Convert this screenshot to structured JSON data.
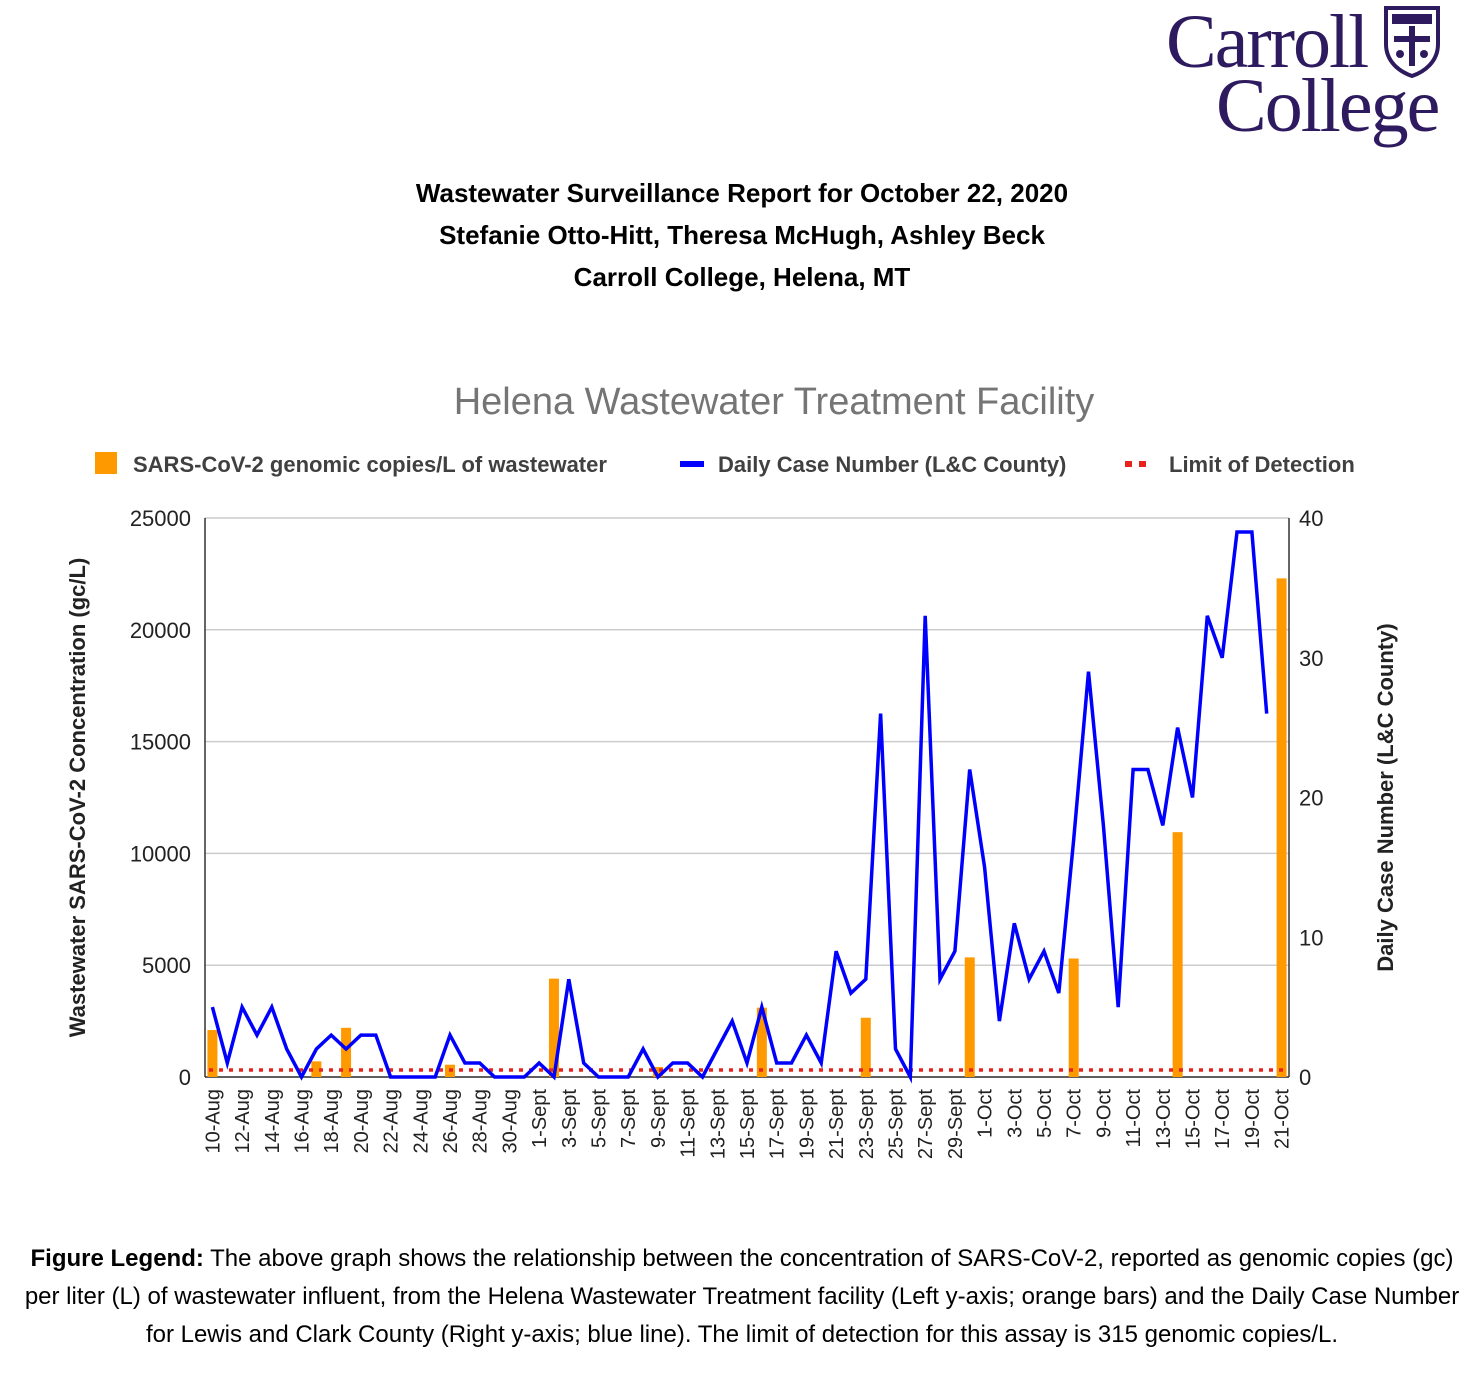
{
  "logo": {
    "line1": "Carroll",
    "line2": "College",
    "name": "Carroll College logo"
  },
  "header": {
    "title": "Wastewater Surveillance Report for October 22, 2020",
    "authors": "Stefanie Otto-Hitt, Theresa McHugh, Ashley Beck",
    "affiliation": "Carroll College, Helena, MT"
  },
  "figure_legend": {
    "label": "Figure Legend:",
    "text": " The above graph shows the relationship between the concentration of SARS-CoV-2, reported as genomic copies (gc) per liter (L) of wastewater influent, from the Helena Wastewater Treatment facility (Left y-axis; orange bars) and the Daily Case Number for Lewis and Clark County (Right y-axis; blue line).  The limit of detection for this assay is 315 genomic copies/L."
  },
  "colors": {
    "bar": "#ff9900",
    "line": "#0000ff",
    "lod": "#e8231d",
    "grid": "#cccccc",
    "title": "#757575",
    "logo": "#2e1a5e"
  },
  "chart_data": {
    "type": "bar+line",
    "title": "Helena Wastewater Treatment Facility",
    "legend": [
      "SARS-CoV-2 genomic copies/L of wastewater",
      "Daily Case Number (L&C County)",
      "Limit of Detection"
    ],
    "y_left_label": "Wastewater SARS-CoV-2 Concentration (gc/L)",
    "y_right_label": "Daily Case Number (L&C County)",
    "y_left_ticks": [
      "0",
      "5000",
      "10000",
      "15000",
      "20000",
      "25000"
    ],
    "y_right_ticks": [
      "0",
      "10",
      "20",
      "30",
      "40"
    ],
    "y_left_range": [
      0,
      25000
    ],
    "y_right_range": [
      0,
      40
    ],
    "x_labels": [
      "10-Aug",
      "12-Aug",
      "14-Aug",
      "16-Aug",
      "18-Aug",
      "20-Aug",
      "22-Aug",
      "24-Aug",
      "26-Aug",
      "28-Aug",
      "30-Aug",
      "1-Sept",
      "3-Sept",
      "5-Sept",
      "7-Sept",
      "9-Sept",
      "11-Sept",
      "13-Sept",
      "15-Sept",
      "17-Sept",
      "19-Sept",
      "21-Sept",
      "23-Sept",
      "25-Sept",
      "27-Sept",
      "29-Sept",
      "1-Oct",
      "3-Oct",
      "5-Oct",
      "7-Oct",
      "9-Oct",
      "11-Oct",
      "13-Oct",
      "15-Oct",
      "17-Oct",
      "19-Oct",
      "21-Oct"
    ],
    "start_day": "10-Aug",
    "num_days": 73,
    "bars": [
      {
        "day": 0,
        "value": 2100
      },
      {
        "day": 7,
        "value": 700
      },
      {
        "day": 9,
        "value": 2200
      },
      {
        "day": 16,
        "value": 550
      },
      {
        "day": 23,
        "value": 4400
      },
      {
        "day": 30,
        "value": 450
      },
      {
        "day": 37,
        "value": 3100
      },
      {
        "day": 44,
        "value": 2650
      },
      {
        "day": 51,
        "value": 5350
      },
      {
        "day": 58,
        "value": 5300
      },
      {
        "day": 65,
        "value": 10950
      },
      {
        "day": 72,
        "value": 22300
      }
    ],
    "daily_cases": [
      5,
      1,
      5,
      3,
      5,
      2,
      0,
      2,
      3,
      2,
      3,
      3,
      0,
      0,
      0,
      0,
      3,
      1,
      1,
      0,
      0,
      0,
      1,
      0,
      7,
      1,
      0,
      0,
      0,
      2,
      0,
      1,
      1,
      0,
      2,
      4,
      1,
      5,
      1,
      1,
      3,
      1,
      9,
      6,
      7,
      26,
      2,
      0,
      33,
      7,
      9,
      22,
      15,
      4,
      11,
      7,
      9,
      6,
      17,
      29,
      18,
      5,
      22,
      22,
      18,
      25,
      20,
      33,
      30,
      39,
      39,
      26
    ],
    "limit_of_detection": 315
  }
}
